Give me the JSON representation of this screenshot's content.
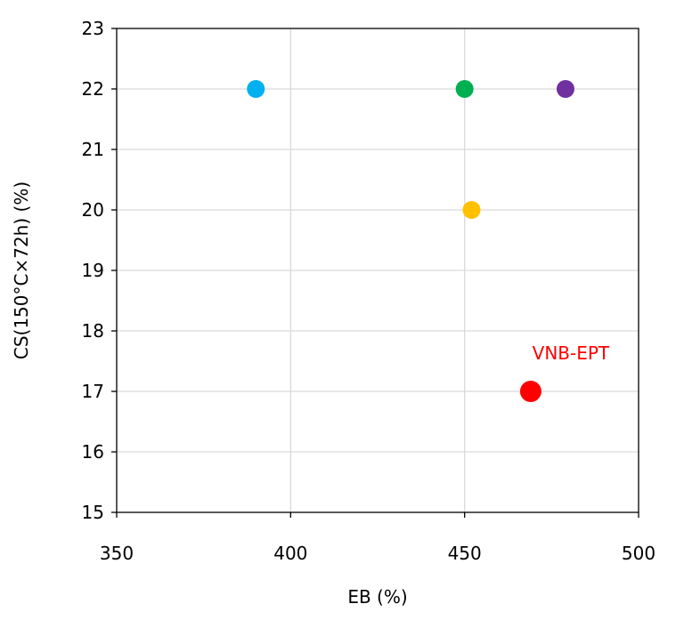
{
  "chart_data": {
    "type": "scatter",
    "title": "",
    "xlabel": "EB (%)",
    "ylabel": "CS(150°C×72h) (%)",
    "xlim": [
      350,
      500
    ],
    "ylim": [
      15,
      23
    ],
    "xticks": [
      350,
      400,
      450,
      500
    ],
    "yticks": [
      15,
      16,
      17,
      18,
      19,
      20,
      21,
      22,
      23
    ],
    "grid": true,
    "legend": "none",
    "points": [
      {
        "x": 390,
        "y": 22,
        "color": "#00b0f0",
        "size": "normal"
      },
      {
        "x": 450,
        "y": 22,
        "color": "#00b050",
        "size": "normal"
      },
      {
        "x": 479,
        "y": 22,
        "color": "#7030a0",
        "size": "normal"
      },
      {
        "x": 452,
        "y": 20,
        "color": "#ffc000",
        "size": "normal"
      },
      {
        "x": 469,
        "y": 17,
        "color": "#ff0000",
        "size": "large",
        "label": "VNB-EPT"
      }
    ],
    "annotation_color": "#ff0000"
  }
}
